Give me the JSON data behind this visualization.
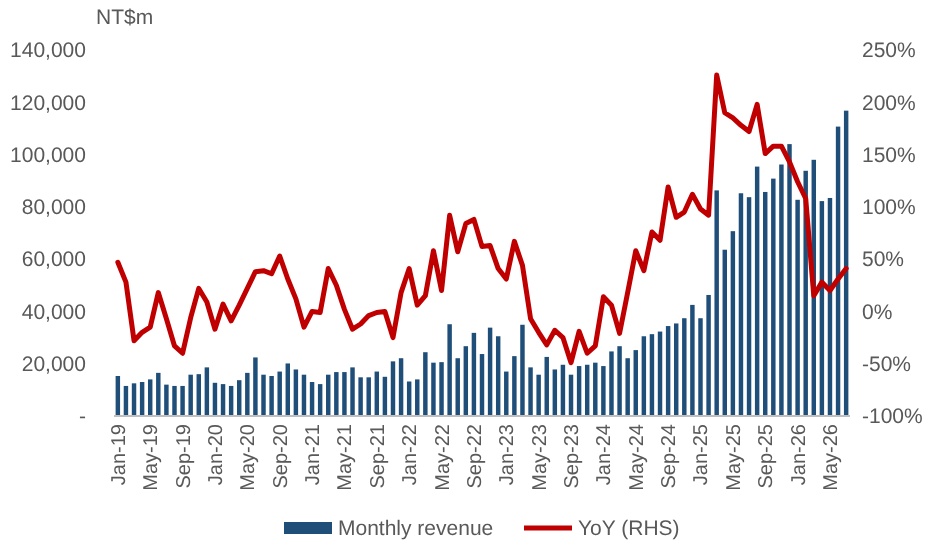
{
  "chart_data": {
    "type": "bar",
    "ylabel": "NT$m",
    "categories": [
      "Jan-19",
      null,
      null,
      null,
      "May-19",
      null,
      null,
      null,
      "Sep-19",
      null,
      null,
      null,
      "Jan-20",
      null,
      null,
      null,
      "May-20",
      null,
      null,
      null,
      "Sep-20",
      null,
      null,
      null,
      "Jan-21",
      null,
      null,
      null,
      "May-21",
      null,
      null,
      null,
      "Sep-21",
      null,
      null,
      null,
      "Jan-22",
      null,
      null,
      null,
      "May-22",
      null,
      null,
      null,
      "Sep-22",
      null,
      null,
      null,
      "Jan-23",
      null,
      null,
      null,
      "May-23",
      null,
      null,
      null,
      "Sep-23",
      null,
      null,
      null,
      "Jan-24",
      null,
      null,
      null,
      "May-24",
      null,
      null,
      null,
      "Sep-24",
      null,
      null,
      null,
      "Jan-25",
      null,
      null,
      null,
      "May-25",
      null,
      null,
      null,
      "Sep-25",
      null,
      null,
      null,
      "Jan-26",
      null,
      null,
      null,
      "May-26",
      null,
      null
    ],
    "series": [
      {
        "name": "Monthly revenue",
        "color": "#1f4e79",
        "values": [
          15300,
          11500,
          12500,
          13000,
          14000,
          16500,
          12000,
          11500,
          11500,
          15800,
          16000,
          18600,
          12700,
          12200,
          11500,
          13700,
          16500,
          22400,
          15800,
          15300,
          17000,
          20100,
          17800,
          15800,
          13000,
          12200,
          15800,
          16800,
          16800,
          18600,
          14800,
          14800,
          17000,
          15000,
          20900,
          22100,
          13200,
          14000,
          24400,
          20400,
          20600,
          35100,
          22100,
          26700,
          31800,
          23700,
          33800,
          30500,
          17000,
          22900,
          34900,
          18600,
          15800,
          22600,
          17800,
          19600,
          15800,
          19100,
          19600,
          20400,
          19100,
          24700,
          26700,
          22100,
          25200,
          30500,
          31300,
          32300,
          34400,
          35400,
          37400,
          42500,
          37400,
          46300,
          86300,
          63600,
          70700,
          85200,
          83700,
          95400,
          85700,
          90800,
          96200,
          104000,
          82700,
          93800,
          98000,
          82200,
          83400,
          110700,
          116800
        ]
      },
      {
        "name": "YoY (RHS)",
        "type": "line",
        "axis": "y2",
        "color": "#c00000",
        "values": [
          47,
          28,
          -28,
          -20,
          -15,
          18,
          -7,
          -33,
          -40,
          -6,
          22,
          9,
          -17,
          7,
          -9,
          6,
          22,
          38,
          39,
          36,
          53,
          31,
          12,
          -15,
          0,
          -1,
          41,
          25,
          2,
          -17,
          -12,
          -4,
          -1,
          0,
          -25,
          18,
          41,
          6,
          15,
          58,
          20,
          92,
          57,
          84,
          88,
          62,
          63,
          41,
          31,
          67,
          44,
          -7,
          -20,
          -32,
          -18,
          -25,
          -49,
          -19,
          -40,
          -33,
          14,
          6,
          -21,
          18,
          58,
          39,
          76,
          68,
          119,
          90,
          95,
          112,
          98,
          92,
          226,
          190,
          185,
          178,
          172,
          198,
          151,
          158,
          158,
          143,
          124,
          108,
          15,
          28,
          20,
          31,
          41
        ]
      }
    ],
    "ylim": [
      0,
      140000
    ],
    "yticks": [
      {
        "value": 0,
        "label": "-"
      },
      {
        "value": 20000,
        "label": "20,000"
      },
      {
        "value": 40000,
        "label": "40,000"
      },
      {
        "value": 60000,
        "label": "60,000"
      },
      {
        "value": 80000,
        "label": "80,000"
      },
      {
        "value": 100000,
        "label": "100,000"
      },
      {
        "value": 120000,
        "label": "120,000"
      },
      {
        "value": 140000,
        "label": "140,000"
      }
    ],
    "y2lim": [
      -100,
      250
    ],
    "y2ticks": [
      {
        "value": -100,
        "label": "-100%"
      },
      {
        "value": -50,
        "label": "-50%"
      },
      {
        "value": 0,
        "label": "0%"
      },
      {
        "value": 50,
        "label": "50%"
      },
      {
        "value": 100,
        "label": "100%"
      },
      {
        "value": 150,
        "label": "150%"
      },
      {
        "value": 200,
        "label": "200%"
      },
      {
        "value": 250,
        "label": "250%"
      }
    ],
    "legend": "bottom"
  }
}
